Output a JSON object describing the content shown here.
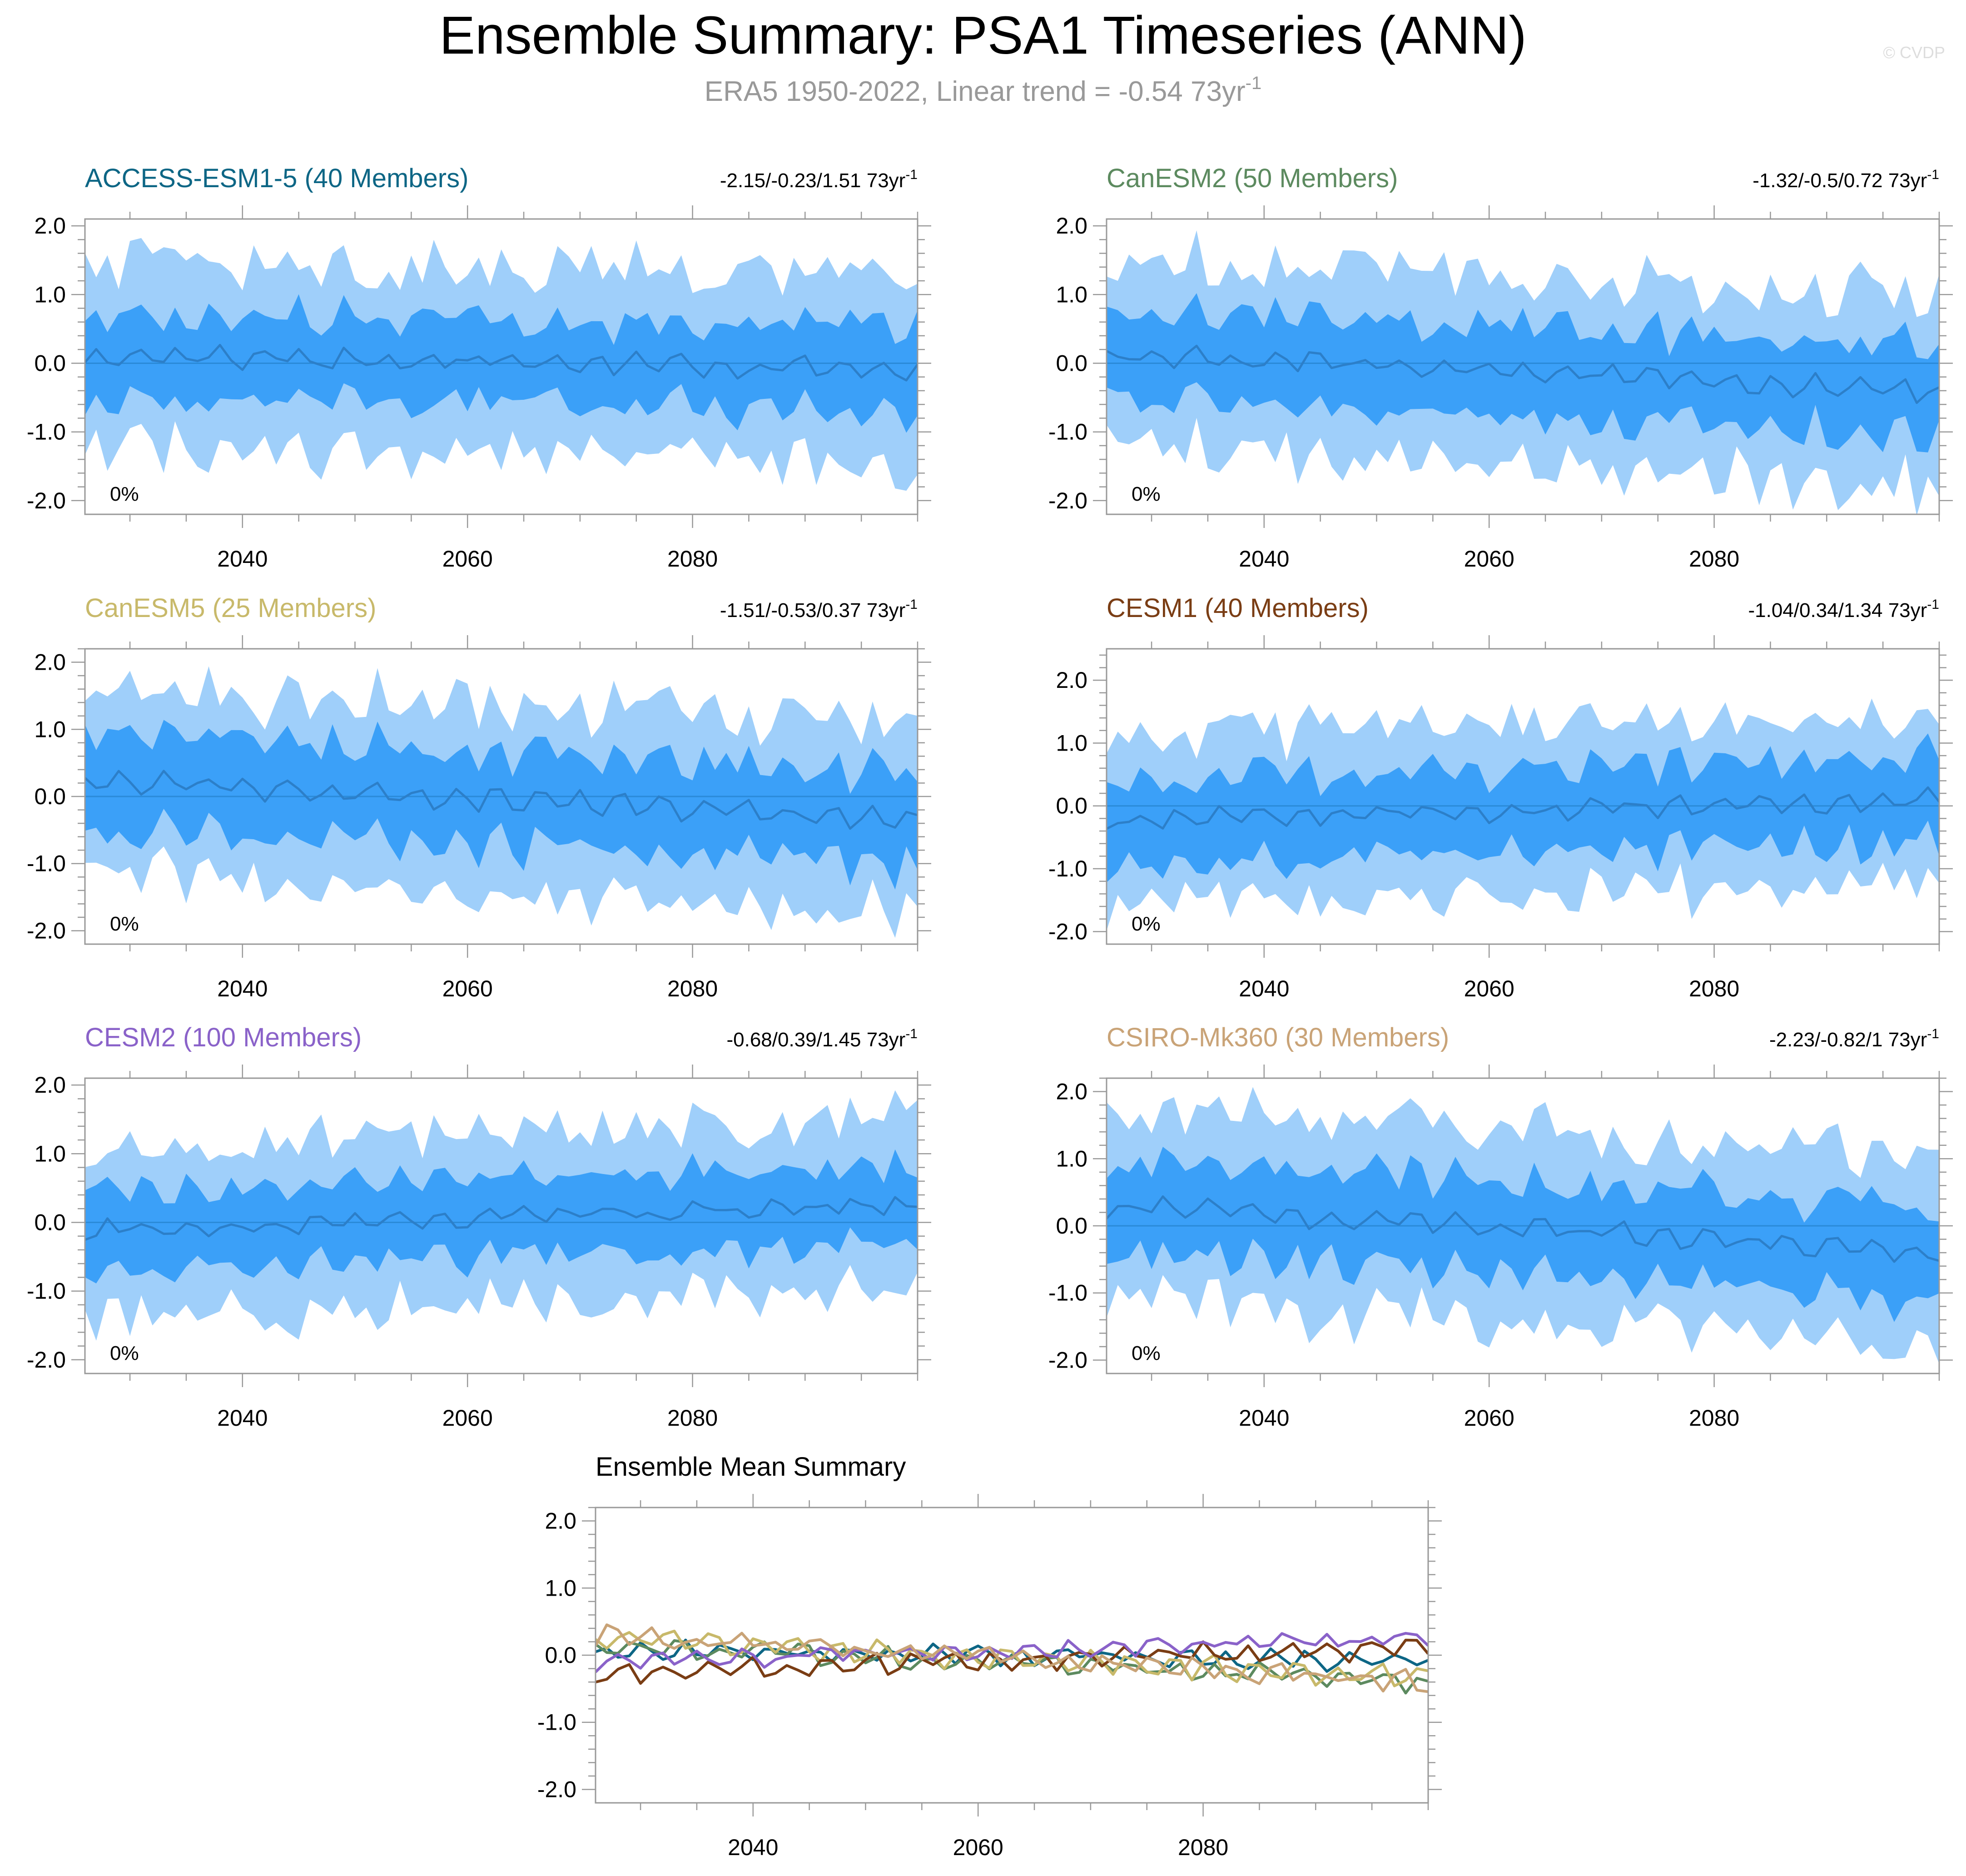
{
  "title": "Ensemble Summary: PSA1 Timeseries (ANN)",
  "subtitle_main": "ERA5 1950-2022, Linear trend = -0.54 73yr",
  "subtitle_sup": "-1",
  "copyright": "© CVDP",
  "colors": {
    "outer_band": "#9fcffa",
    "inner_band": "#3ba0f8",
    "mean_line": "#2c7fc9",
    "frame": "#999999",
    "text": "#000000",
    "subtitle": "#999999"
  },
  "chart_data": [
    {
      "type": "area",
      "title": "ACCESS-ESM1-5 (40 Members)",
      "title_color": "#0d6685",
      "trend_label": "-2.15/-0.23/1.51 73yr",
      "trend_sup": "-1",
      "pct_label": "0%",
      "x_start": 2026,
      "x_end": 2100,
      "xlim": [
        2026,
        2100
      ],
      "ylim": [
        -2.2,
        2.1
      ],
      "xticks": [
        2040,
        2060,
        2080
      ],
      "yticks": [
        2.0,
        1.0,
        0.0,
        -1.0,
        -2.0
      ],
      "ytick_labels": [
        "2.0",
        "1.0",
        "0.0",
        "-1.0",
        "-2.0"
      ],
      "wave": {
        "mean": [
          0.1,
          0.11,
          0.0
        ],
        "trend": -0.2,
        "inner_width": 0.65,
        "outer_width": 1.35,
        "dmin": 0.35
      }
    },
    {
      "type": "area",
      "title": "CanESM2 (50 Members)",
      "title_color": "#5c8a5f",
      "trend_label": "-1.32/-0.5/0.72 73yr",
      "trend_sup": "-1",
      "pct_label": "0%",
      "x_start": 2026,
      "x_end": 2100,
      "xlim": [
        2026,
        2100
      ],
      "ylim": [
        -2.2,
        2.1
      ],
      "xticks": [
        2040,
        2060,
        2080
      ],
      "yticks": [
        2.0,
        1.0,
        0.0,
        -1.0,
        -2.0
      ],
      "ytick_labels": [
        "2.0",
        "1.0",
        "0.0",
        "-1.0",
        "-2.0"
      ],
      "wave": {
        "mean": [
          0.15,
          0.12,
          1.3
        ],
        "trend": -0.55,
        "inner_width": 0.7,
        "outer_width": 1.35,
        "dmin": 0.35
      }
    },
    {
      "type": "area",
      "title": "CanESM5 (25 Members)",
      "title_color": "#c8b96a",
      "trend_label": "-1.51/-0.53/0.37 73yr",
      "trend_sup": "-1",
      "pct_label": "0%",
      "x_start": 2026,
      "x_end": 2100,
      "xlim": [
        2026,
        2100
      ],
      "ylim": [
        -2.2,
        2.2
      ],
      "xticks": [
        2040,
        2060,
        2080
      ],
      "yticks": [
        2.0,
        1.0,
        0.0,
        -1.0,
        -2.0
      ],
      "ytick_labels": [
        "2.0",
        "1.0",
        "0.0",
        "-1.0",
        "-2.0"
      ],
      "wave": {
        "mean": [
          0.25,
          0.13,
          2.1
        ],
        "trend": -0.6,
        "inner_width": 0.75,
        "outer_width": 1.4,
        "dmin": 0.35
      }
    },
    {
      "type": "area",
      "title": "CESM1 (40 Members)",
      "title_color": "#7a3d14",
      "trend_label": "-1.04/0.34/1.34 73yr",
      "trend_sup": "-1",
      "pct_label": "0%",
      "x_start": 2026,
      "x_end": 2100,
      "xlim": [
        2026,
        2100
      ],
      "ylim": [
        -2.2,
        2.5
      ],
      "xticks": [
        2040,
        2060,
        2080
      ],
      "yticks": [
        2.0,
        1.0,
        0.0,
        -1.0,
        -2.0
      ],
      "ytick_labels": [
        "2.0",
        "1.0",
        "0.0",
        "-1.0",
        "-2.0"
      ],
      "wave": {
        "mean": [
          -0.25,
          0.12,
          3.4
        ],
        "trend": 0.35,
        "inner_width": 0.7,
        "outer_width": 1.35,
        "dmin": 0.35
      }
    },
    {
      "type": "area",
      "title": "CESM2 (100 Members)",
      "title_color": "#8a62c9",
      "trend_label": "-0.68/0.39/1.45 73yr",
      "trend_sup": "-1",
      "pct_label": "0%",
      "x_start": 2026,
      "x_end": 2100,
      "xlim": [
        2026,
        2100
      ],
      "ylim": [
        -2.2,
        2.1
      ],
      "xticks": [
        2040,
        2060,
        2080
      ],
      "yticks": [
        2.0,
        1.0,
        0.0,
        -1.0,
        -2.0
      ],
      "ytick_labels": [
        "2.0",
        "1.0",
        "0.0",
        "-1.0",
        "-2.0"
      ],
      "wave": {
        "mean": [
          -0.1,
          0.08,
          4.2
        ],
        "trend": 0.35,
        "inner_width": 0.6,
        "outer_width": 1.25,
        "dmin": 0.3
      }
    },
    {
      "type": "area",
      "title": "CSIRO-Mk360 (30 Members)",
      "title_color": "#c9a377",
      "trend_label": "-2.23/-0.82/1 73yr",
      "trend_sup": "-1",
      "pct_label": "0%",
      "x_start": 2026,
      "x_end": 2100,
      "xlim": [
        2026,
        2100
      ],
      "ylim": [
        -2.2,
        2.2
      ],
      "xticks": [
        2040,
        2060,
        2080
      ],
      "yticks": [
        2.0,
        1.0,
        0.0,
        -1.0,
        -2.0
      ],
      "ytick_labels": [
        "2.0",
        "1.0",
        "0.0",
        "-1.0",
        "-2.0"
      ],
      "wave": {
        "mean": [
          0.3,
          0.12,
          5.1
        ],
        "trend": -0.7,
        "inner_width": 0.72,
        "outer_width": 1.4,
        "dmin": 0.35
      }
    },
    {
      "type": "line",
      "title": "Ensemble Mean Summary",
      "title_color": "#000000",
      "x_start": 2026,
      "x_end": 2100,
      "xlim": [
        2026,
        2100
      ],
      "ylim": [
        -2.2,
        2.2
      ],
      "xticks": [
        2040,
        2060,
        2080
      ],
      "yticks": [
        2.0,
        1.0,
        0.0,
        -1.0,
        -2.0
      ],
      "ytick_labels": [
        "2.0",
        "1.0",
        "0.0",
        "-1.0",
        "-2.0"
      ],
      "series": [
        {
          "name": "ACCESS-ESM1-5",
          "color": "#0d6685",
          "wave": {
            "mean": [
              0.1,
              0.1,
              0.4
            ],
            "trend": -0.2
          }
        },
        {
          "name": "CanESM2",
          "color": "#5c8a5f",
          "wave": {
            "mean": [
              0.15,
              0.1,
              1.7
            ],
            "trend": -0.55
          }
        },
        {
          "name": "CanESM5",
          "color": "#c8b96a",
          "wave": {
            "mean": [
              0.25,
              0.12,
              2.5
            ],
            "trend": -0.6
          }
        },
        {
          "name": "CESM1",
          "color": "#7a3d14",
          "wave": {
            "mean": [
              -0.25,
              0.11,
              3.8
            ],
            "trend": 0.35
          }
        },
        {
          "name": "CESM2",
          "color": "#8a62c9",
          "wave": {
            "mean": [
              -0.1,
              0.07,
              4.6
            ],
            "trend": 0.35
          }
        },
        {
          "name": "CSIRO-Mk360",
          "color": "#c9a377",
          "wave": {
            "mean": [
              0.3,
              0.11,
              5.5
            ],
            "trend": -0.7
          }
        }
      ]
    }
  ]
}
